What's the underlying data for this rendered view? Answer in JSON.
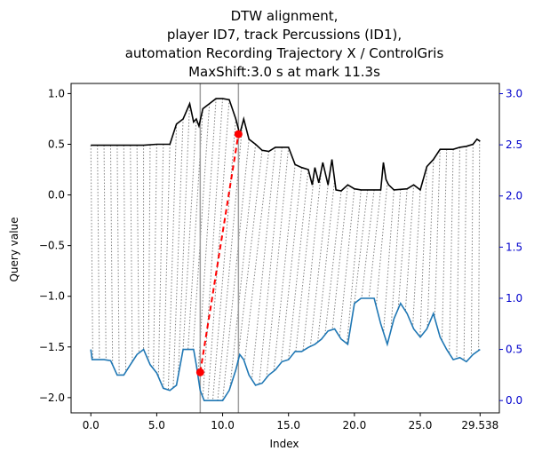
{
  "chart_data": {
    "type": "line",
    "title": [
      "DTW alignment,",
      "player ID7, track Percussions (ID1),",
      "automation Recording Trajectory X / ControlGris",
      "MaxShift:3.0 s at mark 11.3s"
    ],
    "xlabel": "Index",
    "ylabel": "Query value",
    "xlim": [
      -1.5,
      31.0
    ],
    "ylim": [
      -2.15,
      1.1
    ],
    "ylim_right": [
      -0.12,
      3.1
    ],
    "xticks": [
      "0.0",
      "5.0",
      "10.0",
      "15.0",
      "20.0",
      "25.0",
      "29.538"
    ],
    "xtick_values": [
      0,
      5,
      10,
      15,
      20,
      25,
      29.538
    ],
    "yticks": [
      "−2.0",
      "−1.5",
      "−1.0",
      "−0.5",
      "0.0",
      "0.5",
      "1.0"
    ],
    "ytick_values": [
      -2.0,
      -1.5,
      -1.0,
      -0.5,
      0.0,
      0.5,
      1.0
    ],
    "yticks_right": [
      "0.0",
      "0.5",
      "1.0",
      "1.5",
      "2.0",
      "2.5",
      "3.0"
    ],
    "ytick_values_right": [
      0.0,
      0.5,
      1.0,
      1.5,
      2.0,
      2.5,
      3.0
    ],
    "colors": {
      "query": "#000000",
      "reference": "#1f77b4",
      "highlight": "#ff0000",
      "alignment": "#808080",
      "marker_lines": "#a0a0a0",
      "right_axis": "#0000cc"
    },
    "series": [
      {
        "axis": "left",
        "color": "#000000",
        "x": [
          0,
          1,
          2,
          3,
          4,
          5,
          5.5,
          6,
          6.5,
          7,
          7.5,
          7.8,
          8.0,
          8.2,
          8.5,
          9,
          9.5,
          10,
          10.5,
          11,
          11.3,
          11.6,
          12,
          12.5,
          13,
          13.5,
          14,
          14.5,
          15,
          15.5,
          16,
          16.5,
          16.8,
          17,
          17.3,
          17.6,
          18,
          18.3,
          18.6,
          19,
          19.5,
          20,
          20.5,
          21,
          21.5,
          22,
          22.2,
          22.4,
          22.6,
          23,
          24,
          24.5,
          25,
          25.5,
          26,
          26.5,
          27,
          27.5,
          28,
          28.5,
          29,
          29.3,
          29.538
        ],
        "y": [
          0.49,
          0.49,
          0.49,
          0.49,
          0.49,
          0.5,
          0.5,
          0.5,
          0.7,
          0.75,
          0.9,
          0.72,
          0.75,
          0.68,
          0.85,
          0.9,
          0.95,
          0.95,
          0.94,
          0.75,
          0.6,
          0.75,
          0.55,
          0.5,
          0.44,
          0.43,
          0.47,
          0.47,
          0.47,
          0.3,
          0.27,
          0.25,
          0.1,
          0.27,
          0.12,
          0.32,
          0.1,
          0.35,
          0.05,
          0.04,
          0.1,
          0.06,
          0.05,
          0.05,
          0.05,
          0.05,
          0.32,
          0.15,
          0.1,
          0.05,
          0.06,
          0.1,
          0.05,
          0.28,
          0.35,
          0.45,
          0.45,
          0.45,
          0.47,
          0.48,
          0.5,
          0.55,
          0.53
        ]
      },
      {
        "axis": "right",
        "color": "#1f77b4",
        "x": [
          0,
          0.1,
          1,
          1.5,
          2,
          2.2,
          2.5,
          3,
          3.5,
          4,
          4.5,
          5,
          5.5,
          6,
          6.5,
          7,
          7.5,
          7.8,
          8.0,
          8.3,
          8.6,
          9,
          9.5,
          10,
          10.5,
          11,
          11.3,
          11.6,
          12,
          12.5,
          13,
          13.5,
          14,
          14.5,
          15,
          15.5,
          16,
          16.5,
          17,
          17.5,
          18,
          18.5,
          19,
          19.5,
          20,
          20.5,
          21,
          21.5,
          22,
          22.5,
          23,
          23.5,
          24,
          24.5,
          25,
          25.5,
          26,
          26.5,
          27,
          27.5,
          28,
          28.5,
          29,
          29.538
        ],
        "y": [
          0.5,
          0.4,
          0.4,
          0.39,
          0.25,
          0.25,
          0.25,
          0.35,
          0.45,
          0.5,
          0.35,
          0.27,
          0.12,
          0.1,
          0.15,
          0.5,
          0.5,
          0.5,
          0.35,
          0.1,
          0.0,
          0.0,
          0.0,
          0.0,
          0.1,
          0.3,
          0.45,
          0.4,
          0.25,
          0.15,
          0.17,
          0.25,
          0.3,
          0.38,
          0.4,
          0.48,
          0.48,
          0.52,
          0.55,
          0.6,
          0.68,
          0.7,
          0.6,
          0.55,
          0.95,
          1.0,
          1.0,
          1.0,
          0.75,
          0.55,
          0.8,
          0.95,
          0.85,
          0.7,
          0.62,
          0.7,
          0.85,
          0.62,
          0.5,
          0.4,
          0.42,
          0.38,
          0.45,
          0.5
        ]
      }
    ],
    "highlight_line": {
      "x": [
        8.3,
        11.2
      ],
      "y": [
        -1.75,
        0.6
      ]
    },
    "vertical_markers": [
      8.3,
      11.2
    ]
  }
}
